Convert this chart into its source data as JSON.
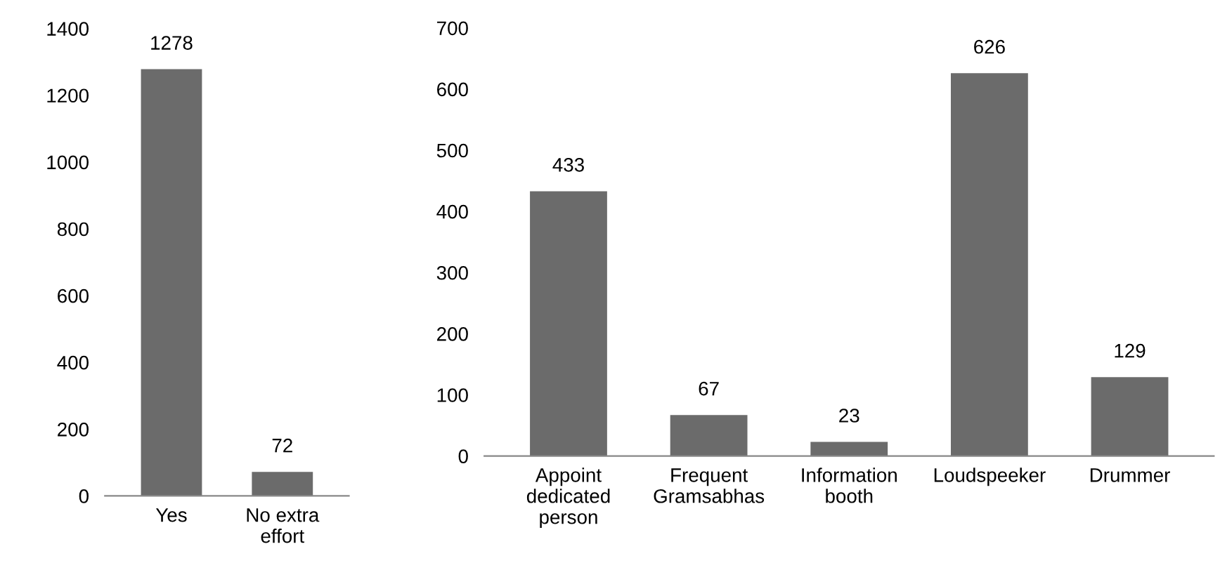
{
  "chart_data": [
    {
      "type": "bar",
      "categories": [
        "Yes",
        "No extra\neffort"
      ],
      "values": [
        1278,
        72
      ],
      "color": "#6b6b6b",
      "ylim": [
        0,
        1400
      ],
      "yticks": [
        0,
        200,
        400,
        600,
        800,
        1000,
        1200,
        1400
      ],
      "data_labels": true,
      "grid": false,
      "legend": false
    },
    {
      "type": "bar",
      "categories": [
        "Appoint\ndedicated\nperson",
        "Frequent\nGramsabhas",
        "Information\nbooth",
        "Loudspeeker",
        "Drummer"
      ],
      "values": [
        433,
        67,
        23,
        626,
        129
      ],
      "color": "#6b6b6b",
      "ylim": [
        0,
        700
      ],
      "yticks": [
        0,
        100,
        200,
        300,
        400,
        500,
        600,
        700
      ],
      "data_labels": true,
      "grid": false,
      "legend": false
    }
  ]
}
